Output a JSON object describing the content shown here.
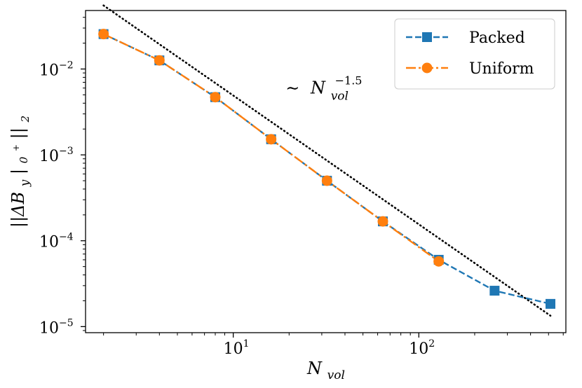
{
  "chart_data": {
    "type": "line",
    "scale": {
      "x": "log",
      "y": "log"
    },
    "xlim": [
      1.6,
      620
    ],
    "ylim": [
      8.5e-06,
      0.048
    ],
    "xlabel": {
      "base": "N",
      "sub": "vol"
    },
    "ylabel": {
      "text": "||ΔB",
      "sub": "y",
      "bar": "|",
      "sub2": "0",
      "sup2": "+",
      "end": "||",
      "sub3": "2"
    },
    "xticks": [
      {
        "value": 10,
        "base": "10",
        "exp": "1"
      },
      {
        "value": 100,
        "base": "10",
        "exp": "2"
      }
    ],
    "yticks": [
      {
        "value": 1e-05,
        "base": "10",
        "exp": "−5"
      },
      {
        "value": 0.0001,
        "base": "10",
        "exp": "−4"
      },
      {
        "value": 0.001,
        "base": "10",
        "exp": "−3"
      },
      {
        "value": 0.01,
        "base": "10",
        "exp": "−2"
      }
    ],
    "series": [
      {
        "name": "Packed",
        "color": "#1f77b4",
        "marker": "square",
        "dash": "dashed",
        "x": [
          2,
          4,
          8,
          16,
          32,
          64,
          128,
          256,
          512
        ],
        "y": [
          0.0255,
          0.0126,
          0.0047,
          0.00152,
          0.0005,
          0.000168,
          6e-05,
          2.62e-05,
          1.84e-05
        ]
      },
      {
        "name": "Uniform",
        "color": "#ff7f0e",
        "marker": "circle",
        "dash": "dashdot",
        "x": [
          2,
          4,
          8,
          16,
          32,
          64,
          128
        ],
        "y": [
          0.0255,
          0.0126,
          0.0047,
          0.00152,
          0.0005,
          0.000168,
          5.75e-05
        ]
      }
    ],
    "reference_line": {
      "x": [
        2,
        512
      ],
      "y": [
        0.055,
        1.34e-05
      ],
      "color": "#000000",
      "style": "dotted"
    },
    "annotation": {
      "prefix": "∼",
      "base": "N",
      "sub": "vol",
      "sup": "−1.5",
      "x": 20,
      "y": 0.006
    },
    "legend": {
      "location": "top-right"
    }
  }
}
